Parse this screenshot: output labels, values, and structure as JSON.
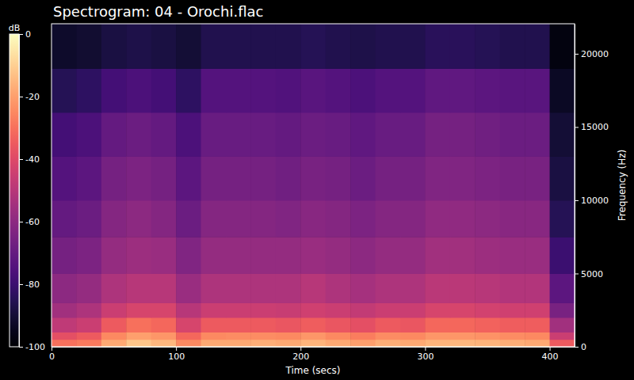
{
  "chart_data": {
    "type": "heatmap",
    "title": "Spectrogram: 04 - Orochi.flac",
    "x_label": "Time (secs)",
    "y_label": "Frequency (Hz)",
    "xlim": [
      0,
      420
    ],
    "ylim": [
      0,
      22050
    ],
    "xticks": [
      0,
      100,
      200,
      300,
      400
    ],
    "yticks": [
      0,
      5000,
      10000,
      15000,
      20000
    ],
    "x_edges": [
      0,
      20,
      40,
      60,
      80,
      100,
      120,
      140,
      160,
      180,
      200,
      220,
      240,
      260,
      280,
      300,
      320,
      340,
      360,
      380,
      400,
      420
    ],
    "y_edges": [
      0,
      500,
      1000,
      2000,
      3000,
      5000,
      7500,
      10000,
      13000,
      16000,
      19000,
      22050
    ],
    "values": [
      [
        -30,
        -28,
        -18,
        -12,
        -15,
        -25,
        -18,
        -18,
        -17,
        -18,
        -16,
        -18,
        -20,
        -17,
        -18,
        -16,
        -15,
        -16,
        -17,
        -18,
        -35
      ],
      [
        -38,
        -35,
        -25,
        -20,
        -22,
        -32,
        -25,
        -24,
        -24,
        -25,
        -22,
        -25,
        -27,
        -24,
        -25,
        -22,
        -22,
        -23,
        -24,
        -25,
        -45
      ],
      [
        -48,
        -45,
        -35,
        -30,
        -32,
        -42,
        -35,
        -35,
        -35,
        -36,
        -34,
        -36,
        -38,
        -35,
        -36,
        -32,
        -32,
        -33,
        -34,
        -34,
        -55
      ],
      [
        -55,
        -52,
        -45,
        -42,
        -42,
        -50,
        -45,
        -45,
        -45,
        -46,
        -44,
        -45,
        -47,
        -45,
        -45,
        -42,
        -42,
        -43,
        -44,
        -44,
        -65
      ],
      [
        -60,
        -58,
        -52,
        -50,
        -50,
        -57,
        -52,
        -52,
        -52,
        -52,
        -50,
        -52,
        -54,
        -52,
        -52,
        -49,
        -49,
        -50,
        -51,
        -51,
        -72
      ],
      [
        -66,
        -64,
        -58,
        -56,
        -57,
        -63,
        -58,
        -58,
        -58,
        -58,
        -57,
        -58,
        -60,
        -58,
        -58,
        -55,
        -55,
        -56,
        -57,
        -57,
        -80
      ],
      [
        -70,
        -68,
        -62,
        -60,
        -62,
        -68,
        -62,
        -62,
        -62,
        -63,
        -61,
        -62,
        -64,
        -62,
        -62,
        -59,
        -59,
        -60,
        -61,
        -61,
        -85
      ],
      [
        -74,
        -72,
        -66,
        -64,
        -66,
        -72,
        -66,
        -66,
        -66,
        -67,
        -65,
        -66,
        -68,
        -66,
        -66,
        -63,
        -63,
        -64,
        -65,
        -65,
        -88
      ],
      [
        -78,
        -76,
        -70,
        -68,
        -70,
        -76,
        -69,
        -69,
        -69,
        -70,
        -68,
        -69,
        -71,
        -69,
        -69,
        -66,
        -66,
        -67,
        -68,
        -68,
        -90
      ],
      [
        -85,
        -83,
        -78,
        -76,
        -78,
        -83,
        -74,
        -74,
        -74,
        -75,
        -73,
        -74,
        -76,
        -74,
        -74,
        -71,
        -71,
        -72,
        -73,
        -73,
        -93
      ],
      [
        -92,
        -91,
        -88,
        -87,
        -88,
        -90,
        -86,
        -86,
        -86,
        -86,
        -85,
        -86,
        -87,
        -86,
        -86,
        -84,
        -84,
        -85,
        -86,
        -86,
        -97
      ]
    ],
    "colorbar": {
      "label": "dB",
      "range": [
        -100,
        0
      ],
      "ticks": [
        0,
        -20,
        -40,
        -60,
        -80,
        -100
      ]
    }
  }
}
